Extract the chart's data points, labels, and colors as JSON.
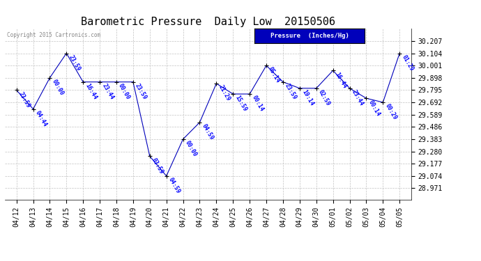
{
  "title": "Barometric Pressure  Daily Low  20150506",
  "ylabel": "Pressure  (Inches/Hg)",
  "copyright": "Copyright 2015 Cartronics.com",
  "background_color": "#ffffff",
  "line_color": "#0000bb",
  "marker_color": "#000000",
  "label_color": "#0000ff",
  "ylim_min": 28.875,
  "ylim_max": 30.31,
  "yticks": [
    28.971,
    29.074,
    29.177,
    29.28,
    29.383,
    29.486,
    29.589,
    29.692,
    29.795,
    29.898,
    30.001,
    30.104,
    30.207
  ],
  "dates": [
    "04/12",
    "04/13",
    "04/14",
    "04/15",
    "04/16",
    "04/17",
    "04/18",
    "04/19",
    "04/20",
    "04/21",
    "04/22",
    "04/23",
    "04/24",
    "04/25",
    "04/26",
    "04/27",
    "04/28",
    "04/29",
    "04/30",
    "05/01",
    "05/02",
    "05/03",
    "05/04",
    "05/05"
  ],
  "values": [
    29.795,
    29.636,
    29.898,
    30.104,
    29.863,
    29.863,
    29.863,
    29.863,
    29.24,
    29.074,
    29.383,
    29.524,
    29.85,
    29.762,
    29.762,
    30.001,
    29.863,
    29.81,
    29.81,
    29.959,
    29.81,
    29.726,
    29.692,
    30.104
  ],
  "labels": [
    "23:59",
    "04:44",
    "00:00",
    "23:59",
    "16:44",
    "23:44",
    "00:00",
    "23:59",
    "03:59",
    "04:59",
    "00:00",
    "04:59",
    "21:29",
    "15:59",
    "00:14",
    "05:14",
    "23:59",
    "19:14",
    "02:59",
    "16:44",
    "23:44",
    "00:14",
    "00:29",
    "01:29"
  ],
  "legend_color": "#0000bb",
  "legend_text_color": "#ffffff",
  "title_fontsize": 11,
  "tick_fontsize": 7,
  "label_fontsize": 6,
  "copyright_color": "#888888"
}
